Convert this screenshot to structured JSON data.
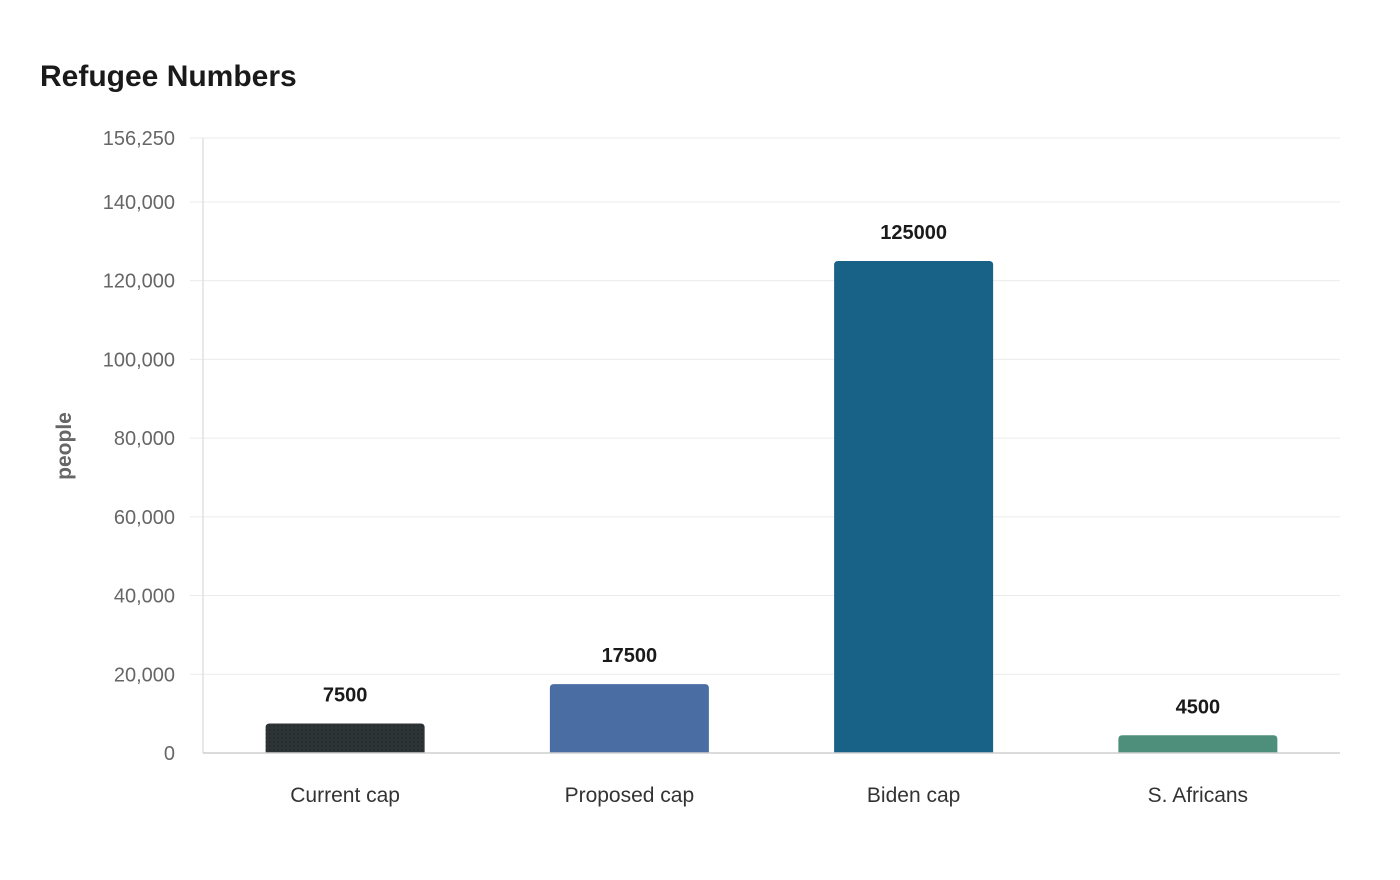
{
  "chart_data": {
    "type": "bar",
    "title": "Refugee Numbers",
    "xlabel": "",
    "ylabel": "people",
    "ylim": [
      0,
      156250
    ],
    "yticks": [
      0,
      20000,
      40000,
      60000,
      80000,
      100000,
      120000,
      140000,
      156250
    ],
    "ytick_labels": [
      "0",
      "20,000",
      "40,000",
      "60,000",
      "80,000",
      "100,000",
      "120,000",
      "140,000",
      "156,250"
    ],
    "categories": [
      "Current cap",
      "Proposed cap",
      "Biden cap",
      "S. Africans"
    ],
    "values": [
      7500,
      17500,
      125000,
      4500
    ],
    "data_labels": [
      "7500",
      "17500",
      "125000",
      "4500"
    ],
    "colors": [
      "#2d3436",
      "#4a6da4",
      "#186187",
      "#4e8f7c"
    ],
    "grid": true,
    "legend": "none"
  }
}
